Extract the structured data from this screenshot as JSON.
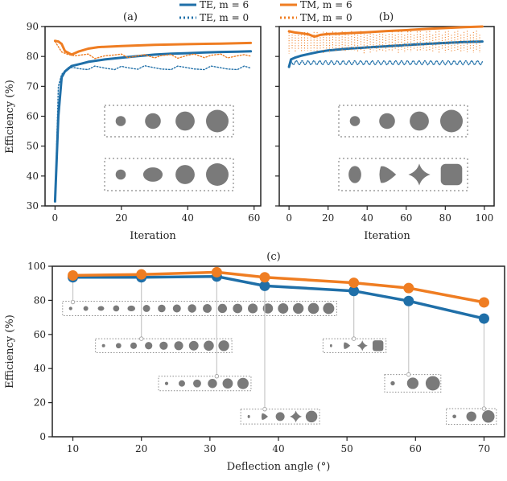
{
  "legend": {
    "position": "top-center",
    "entries": [
      {
        "label": "TE, m = 6",
        "color": "#1f6fa8",
        "style": "solid"
      },
      {
        "label": "TM, m = 6",
        "color": "#ef7d22",
        "style": "solid"
      },
      {
        "label": "TE, m = 0",
        "color": "#1f6fa8",
        "style": "dotted"
      },
      {
        "label": "TM, m = 0",
        "color": "#ef7d22",
        "style": "dotted"
      }
    ]
  },
  "colors": {
    "te": "#1f6fa8",
    "tm": "#ef7d22",
    "shape": "#7a7a7a",
    "box": "#8a8a8a",
    "leader": "#c8c8c8"
  },
  "chart_data": [
    {
      "id": "a",
      "type": "line",
      "title": "(a)",
      "xlabel": "Iteration",
      "ylabel": "Efficiency (%)",
      "xlim": [
        -3,
        62
      ],
      "ylim": [
        30,
        90
      ],
      "xticks": [
        0,
        20,
        40,
        60
      ],
      "yticks": [
        30,
        40,
        50,
        60,
        70,
        80,
        90
      ],
      "grid": false,
      "series": [
        {
          "name": "TE, m = 6",
          "x": [
            0,
            1,
            2,
            3,
            5,
            8,
            10,
            15,
            20,
            25,
            30,
            35,
            40,
            45,
            50,
            55,
            59
          ],
          "values": [
            31.5,
            60,
            73,
            75,
            76.8,
            77.6,
            78.2,
            79,
            79.6,
            80.1,
            80.6,
            80.9,
            81.1,
            81.3,
            81.5,
            81.6,
            81.7
          ]
        },
        {
          "name": "TM, m = 6",
          "x": [
            0,
            1,
            2,
            3,
            5,
            7,
            10,
            13,
            20,
            30,
            40,
            50,
            59
          ],
          "values": [
            85.2,
            85,
            84.2,
            81.8,
            80.6,
            81.6,
            82.6,
            83.1,
            83.5,
            83.9,
            84.1,
            84.3,
            84.5
          ]
        },
        {
          "name": "TE, m = 0",
          "x": [
            0,
            1,
            2,
            4,
            6,
            8,
            10,
            12,
            15,
            18,
            20,
            22,
            25,
            27,
            30,
            32,
            35,
            37,
            40,
            42,
            45,
            47,
            50,
            52,
            55,
            57,
            59
          ],
          "values": [
            31.5,
            70,
            74,
            76.3,
            76.2,
            75.8,
            75.6,
            76.8,
            76.1,
            75.6,
            76.7,
            76.2,
            75.7,
            76.9,
            76.2,
            75.8,
            75.6,
            76.8,
            76.2,
            75.8,
            75.6,
            76.8,
            76.2,
            75.8,
            75.6,
            76.8,
            76.1
          ]
        },
        {
          "name": "TM, m = 0",
          "x": [
            0,
            2,
            4,
            6,
            8,
            10,
            12,
            15,
            18,
            20,
            22,
            25,
            27,
            30,
            32,
            35,
            37,
            40,
            42,
            45,
            47,
            50,
            52,
            55,
            57,
            59
          ],
          "values": [
            85,
            81.5,
            80.6,
            80.2,
            80.5,
            80.8,
            79.3,
            80.2,
            80.5,
            80.8,
            79.6,
            80.2,
            80.6,
            79.5,
            80.3,
            80.6,
            79.4,
            80.4,
            80.8,
            79.6,
            80.4,
            80.8,
            79.5,
            80.2,
            80.6,
            80.1
          ]
        }
      ],
      "insets": [
        {
          "shapes": [
            "circle-s",
            "circle-m",
            "circle-l",
            "circle-xl"
          ]
        },
        {
          "shapes": [
            "circle-s",
            "ellipse-m",
            "circle-l",
            "circle-xl"
          ]
        }
      ]
    },
    {
      "id": "b",
      "type": "line",
      "title": "(b)",
      "xlabel": "Iteration",
      "ylabel": "",
      "xlim": [
        -5,
        105
      ],
      "ylim": [
        30,
        90
      ],
      "xticks": [
        0,
        20,
        40,
        60,
        80,
        100
      ],
      "yticks": [
        30,
        40,
        50,
        60,
        70,
        80,
        90
      ],
      "yticklabels_visible": false,
      "grid": false,
      "series": [
        {
          "name": "TE, m = 6",
          "x": [
            0,
            1,
            3,
            6,
            10,
            15,
            20,
            30,
            40,
            50,
            60,
            70,
            80,
            90,
            99
          ],
          "values": [
            76.5,
            79,
            79.6,
            80.2,
            80.8,
            81.5,
            82,
            82.6,
            83,
            83.4,
            83.8,
            84.2,
            84.5,
            84.8,
            85
          ]
        },
        {
          "name": "TM, m = 6",
          "x": [
            0,
            3,
            6,
            10,
            13,
            16,
            20,
            25,
            30,
            40,
            50,
            60,
            70,
            80,
            90,
            99
          ],
          "values": [
            88.4,
            88,
            87.8,
            87.4,
            86.6,
            87.2,
            87.5,
            87.6,
            87.8,
            88.1,
            88.5,
            88.8,
            89.2,
            89.5,
            89.8,
            90
          ]
        },
        {
          "name": "TE, m = 0",
          "x_range": [
            1,
            99
          ],
          "band": [
            77.2,
            78.6
          ]
        },
        {
          "name": "TM, m = 0",
          "x_range": [
            0,
            99
          ],
          "band": [
            81,
            88
          ]
        }
      ],
      "insets": [
        {
          "shapes": [
            "circle-s",
            "circle-m",
            "circle-l",
            "circle-xl"
          ]
        },
        {
          "shapes": [
            "ellipse-v",
            "rounded-triangle",
            "four-lobe-star",
            "rounded-square"
          ]
        }
      ]
    },
    {
      "id": "c",
      "type": "line",
      "title": "(c)",
      "xlabel": "Deflection angle (°)",
      "ylabel": "Efficiency (%)",
      "xlim": [
        7,
        73
      ],
      "ylim": [
        0,
        100
      ],
      "xticks": [
        10,
        20,
        30,
        40,
        50,
        60,
        70
      ],
      "yticks": [
        0,
        20,
        40,
        60,
        80,
        100
      ],
      "grid": false,
      "markers": true,
      "x": [
        10,
        20,
        31,
        38,
        51,
        59,
        70
      ],
      "series": [
        {
          "name": "TE, m = 6",
          "values": [
            93.5,
            93.5,
            94,
            88.5,
            85.5,
            79.6,
            69.3
          ]
        },
        {
          "name": "TM, m = 6",
          "values": [
            94.6,
            95.2,
            96.5,
            93.5,
            90.3,
            87.2,
            78.8
          ]
        }
      ],
      "insets": [
        {
          "angle": 10,
          "anchor_y": 79,
          "box_x": [
            8.5,
            48.5
          ],
          "box_y": [
            71,
            79.5
          ],
          "count": 18
        },
        {
          "angle": 20,
          "anchor_y": 57.5,
          "box_x": [
            13.3,
            33.2
          ],
          "box_y": [
            49.3,
            57.5
          ],
          "count": 9
        },
        {
          "angle": 31,
          "anchor_y": 35.5,
          "box_x": [
            22.5,
            36
          ],
          "box_y": [
            27,
            35.5
          ],
          "count": 6
        },
        {
          "angle": 38,
          "anchor_y": 16.2,
          "box_x": [
            34.5,
            46
          ],
          "box_y": [
            7.5,
            16.2
          ],
          "count": 5
        },
        {
          "angle": 51,
          "anchor_y": 57.5,
          "box_x": [
            46.5,
            55.7
          ],
          "box_y": [
            49.3,
            57.5
          ],
          "count": 4
        },
        {
          "angle": 59,
          "anchor_y": 36.5,
          "box_x": [
            55.5,
            63.7
          ],
          "box_y": [
            26.2,
            36.5
          ],
          "count": 3
        },
        {
          "angle": 70,
          "anchor_y": 16.5,
          "box_x": [
            64.5,
            71.8
          ],
          "box_y": [
            7.3,
            16.5
          ],
          "count": 3
        }
      ]
    }
  ]
}
